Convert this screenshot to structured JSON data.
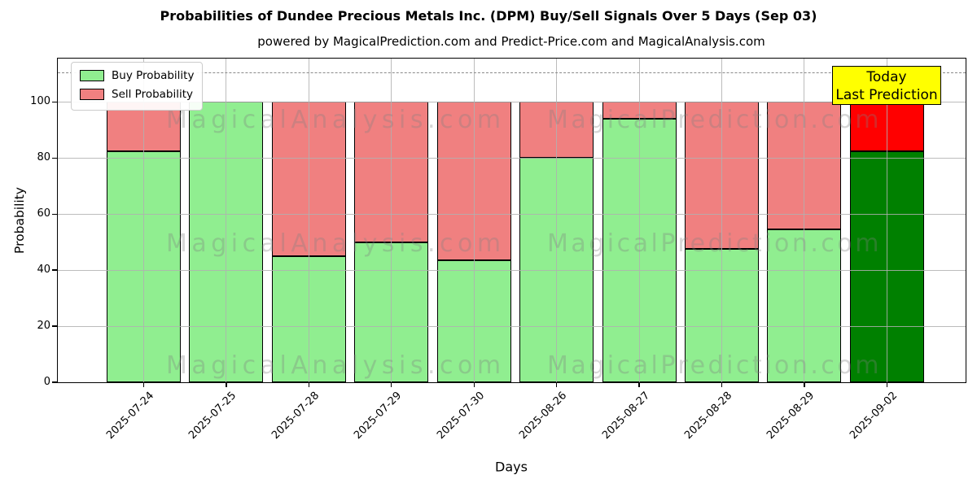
{
  "title": "Probabilities of Dundee Precious Metals Inc. (DPM) Buy/Sell Signals Over 5 Days (Sep 03)",
  "subtitle": "powered by MagicalPrediction.com and Predict-Price.com and MagicalAnalysis.com",
  "watermarks": {
    "left": "MagicalAnalysis.com",
    "right": "MagicalPrediction.com"
  },
  "annotation": {
    "line1": "Today",
    "line2": "Last Prediction",
    "bg_color": "#ffff00"
  },
  "legend": [
    {
      "label": "Buy Probability",
      "color": "#90EE90"
    },
    {
      "label": "Sell Probability",
      "color": "#F08080"
    }
  ],
  "axes": {
    "ylabel": "Probability",
    "xlabel": "Days",
    "yticks": [
      0,
      20,
      40,
      60,
      80,
      100
    ],
    "ylim": [
      0,
      115.5
    ],
    "dashed_line_y": 110.5,
    "grid": true
  },
  "chart_data": {
    "type": "bar",
    "stacked": true,
    "categories": [
      "2025-07-24",
      "2025-07-25",
      "2025-07-28",
      "2025-07-29",
      "2025-07-30",
      "2025-08-26",
      "2025-08-27",
      "2025-08-28",
      "2025-08-29",
      "2025-09-02"
    ],
    "series": [
      {
        "name": "Buy Probability",
        "values": [
          82.5,
          100,
          45,
          50,
          43.5,
          80,
          94,
          47.5,
          54.5,
          82.5
        ]
      },
      {
        "name": "Sell Probability",
        "values": [
          17.5,
          0,
          55,
          50,
          56.5,
          20,
          6,
          52.5,
          45.5,
          17.5
        ]
      }
    ],
    "colors": {
      "buy": "#90EE90",
      "sell": "#F08080",
      "today_buy": "#008000",
      "today_sell": "#FF0000"
    },
    "today_index": 9,
    "title": "Probabilities of Dundee Precious Metals Inc. (DPM) Buy/Sell Signals Over 5 Days (Sep 03)",
    "xlabel": "Days",
    "ylabel": "Probability",
    "legend_position": "upper left"
  }
}
